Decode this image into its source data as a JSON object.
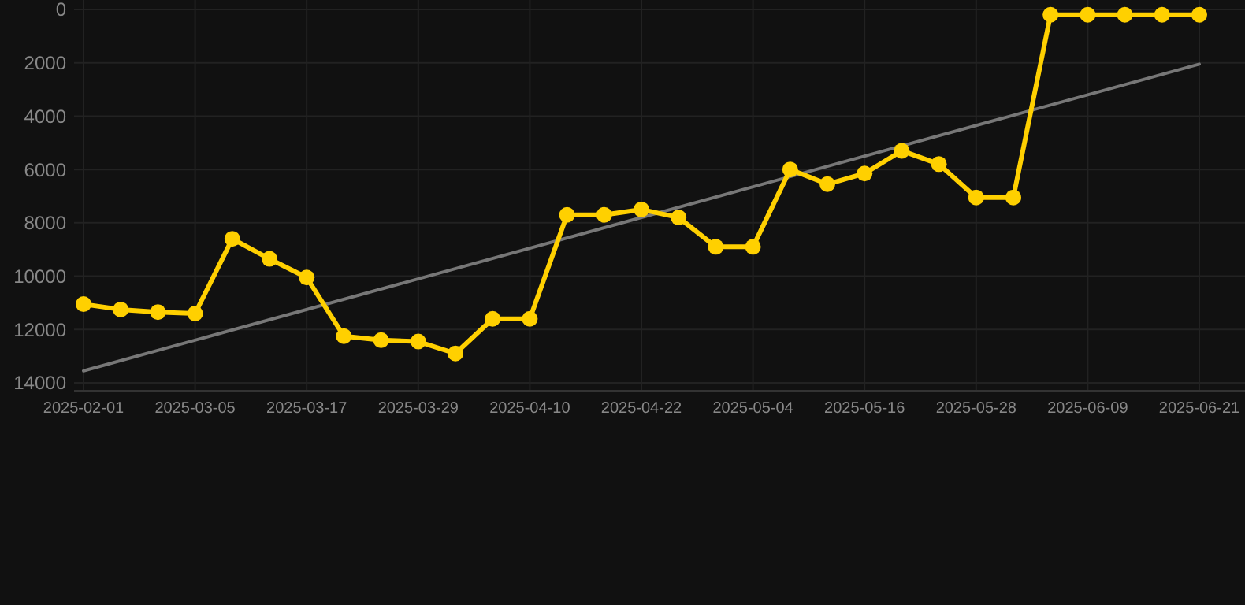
{
  "chart_data": {
    "type": "line",
    "categories": [
      "2025-02-01",
      null,
      null,
      "2025-03-05",
      null,
      null,
      "2025-03-17",
      null,
      null,
      "2025-03-29",
      null,
      null,
      "2025-04-10",
      null,
      null,
      "2025-04-22",
      null,
      null,
      "2025-05-04",
      null,
      null,
      "2025-05-16",
      null,
      null,
      "2025-05-28",
      null,
      null,
      "2025-06-09",
      null,
      null,
      "2025-06-21"
    ],
    "series": [
      {
        "color": "#ffd000",
        "marker": "circle",
        "values": [
          11050,
          11250,
          11350,
          11400,
          8600,
          9350,
          10050,
          12250,
          12400,
          12450,
          12900,
          11600,
          11600,
          7700,
          7700,
          7500,
          7800,
          8900,
          8900,
          6000,
          6550,
          6150,
          5300,
          5800,
          7050,
          7050,
          200,
          200,
          200,
          200,
          200
        ]
      },
      {
        "type": "line",
        "color": "#777777",
        "marker": "none",
        "values": [
          13550,
          null,
          null,
          null,
          null,
          null,
          null,
          null,
          null,
          null,
          null,
          null,
          null,
          null,
          null,
          null,
          null,
          null,
          null,
          null,
          null,
          null,
          null,
          null,
          null,
          null,
          null,
          null,
          null,
          null,
          2050
        ]
      }
    ],
    "ylim": [
      14000,
      0
    ],
    "yticks": [
      0,
      2000,
      4000,
      6000,
      8000,
      10000,
      12000,
      14000
    ],
    "grid": true
  }
}
